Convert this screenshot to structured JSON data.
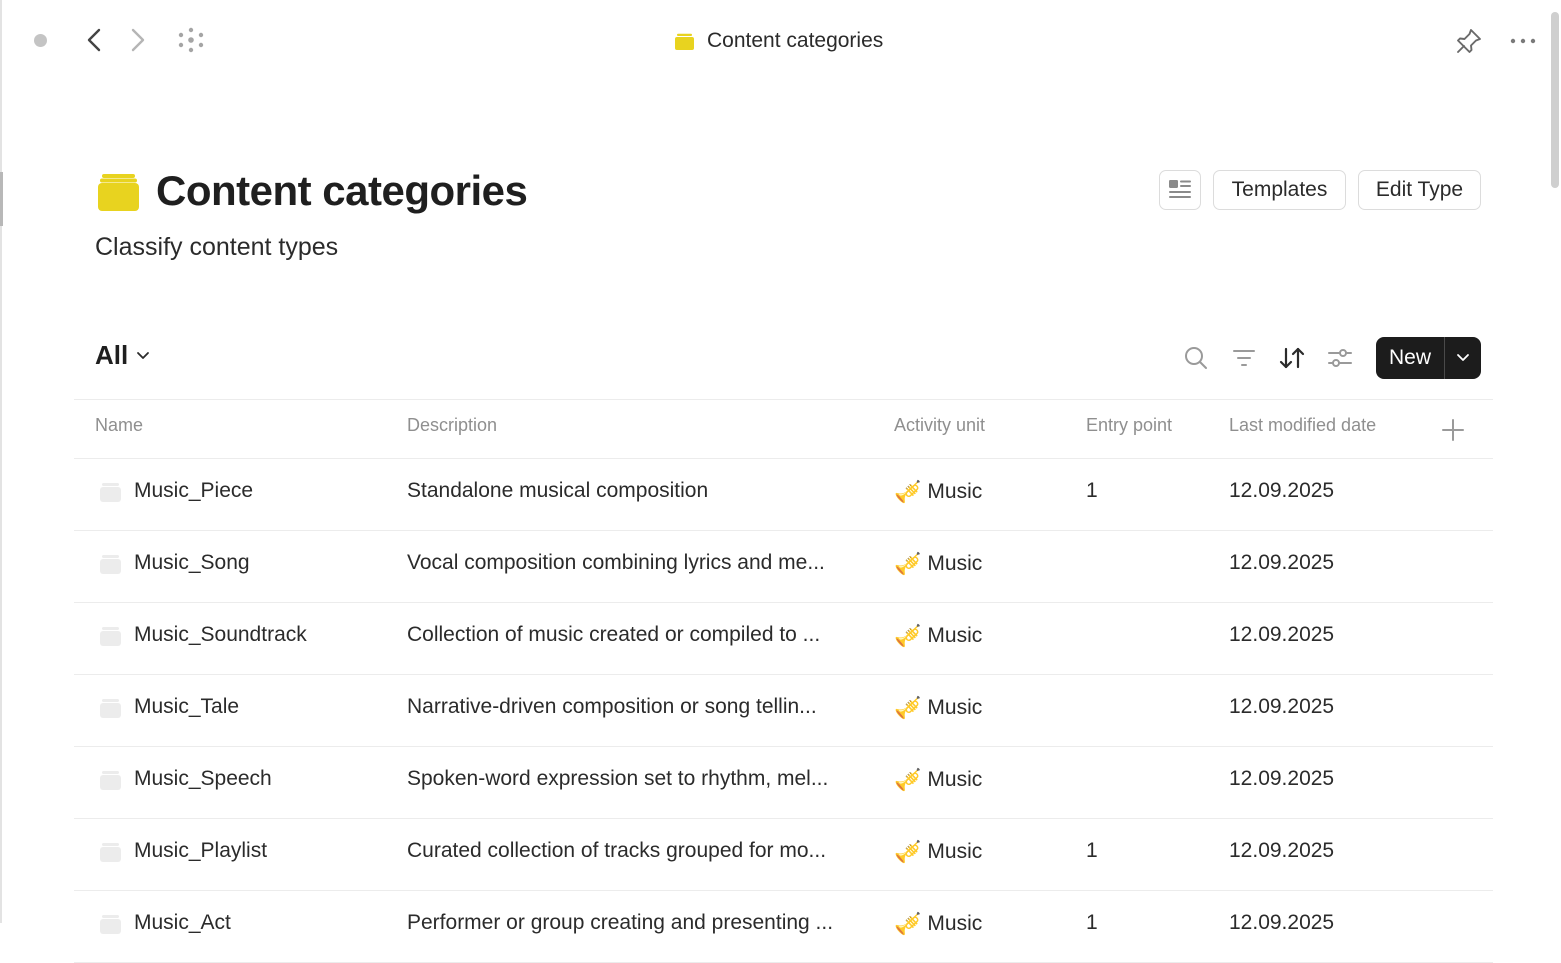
{
  "topbar": {
    "title": "Content categories",
    "icons": [
      "status-dot",
      "back-icon",
      "forward-icon",
      "graph-icon",
      "type-icon",
      "pin-icon",
      "more-icon"
    ]
  },
  "header": {
    "title": "Content categories",
    "description": "Classify content types",
    "accent_color": "#e8d31f",
    "buttons": {
      "layout_icon": "layout-icon",
      "templates": "Templates",
      "edit_type": "Edit Type"
    }
  },
  "toolbar": {
    "view": "All",
    "new_label": "New",
    "icons": [
      "search-icon",
      "filter-icon",
      "sort-icon",
      "settings-icon",
      "chevron-down-icon"
    ]
  },
  "table": {
    "columns": [
      "Name",
      "Description",
      "Activity unit",
      "Entry point",
      "Last modified date"
    ],
    "rows": [
      {
        "name": "Music_Piece",
        "description": "Standalone musical composition",
        "unit": "Music",
        "entry": "1",
        "date": "12.09.2025"
      },
      {
        "name": "Music_Song",
        "description": "Vocal composition combining lyrics and me...",
        "unit": "Music",
        "entry": "",
        "date": "12.09.2025"
      },
      {
        "name": "Music_Soundtrack",
        "description": "Collection of music created or compiled to ...",
        "unit": "Music",
        "entry": "",
        "date": "12.09.2025"
      },
      {
        "name": "Music_Tale",
        "description": "Narrative-driven composition or song tellin...",
        "unit": "Music",
        "entry": "",
        "date": "12.09.2025"
      },
      {
        "name": "Music_Speech",
        "description": "Spoken-word expression set to rhythm, mel...",
        "unit": "Music",
        "entry": "",
        "date": "12.09.2025"
      },
      {
        "name": "Music_Playlist",
        "description": "Curated collection of tracks grouped for mo...",
        "unit": "Music",
        "entry": "1",
        "date": "12.09.2025"
      },
      {
        "name": "Music_Act",
        "description": "Performer or group creating and presenting ...",
        "unit": "Music",
        "entry": "1",
        "date": "12.09.2025"
      }
    ]
  }
}
